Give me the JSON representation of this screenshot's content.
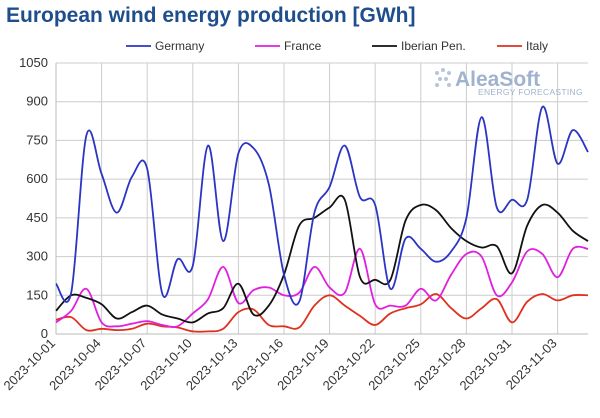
{
  "chart_data": {
    "type": "line",
    "title": "European wind energy production [GWh]",
    "xlabel": "",
    "ylabel": "",
    "ylim": [
      0,
      1050
    ],
    "yticks": [
      0,
      150,
      300,
      450,
      600,
      750,
      900,
      1050
    ],
    "grid": true,
    "legend_position": "top",
    "x": [
      "2023-10-01",
      "2023-10-02",
      "2023-10-03",
      "2023-10-04",
      "2023-10-05",
      "2023-10-06",
      "2023-10-07",
      "2023-10-08",
      "2023-10-09",
      "2023-10-10",
      "2023-10-11",
      "2023-10-12",
      "2023-10-13",
      "2023-10-14",
      "2023-10-15",
      "2023-10-16",
      "2023-10-17",
      "2023-10-18",
      "2023-10-19",
      "2023-10-20",
      "2023-10-21",
      "2023-10-22",
      "2023-10-23",
      "2023-10-24",
      "2023-10-25",
      "2023-10-26",
      "2023-10-27",
      "2023-10-28",
      "2023-10-29",
      "2023-10-30",
      "2023-10-31",
      "2023-11-01",
      "2023-11-02",
      "2023-11-03",
      "2023-11-04",
      "2023-11-05"
    ],
    "xtick_labels": [
      "2023-10-01",
      "2023-10-04",
      "2023-10-07",
      "2023-10-10",
      "2023-10-13",
      "2023-10-16",
      "2023-10-19",
      "2023-10-22",
      "2023-10-25",
      "2023-10-28",
      "2023-10-31",
      "2023-11-03"
    ],
    "series": [
      {
        "name": "Germany",
        "color": "#2b35c4",
        "values": [
          195,
          160,
          770,
          620,
          470,
          610,
          640,
          155,
          290,
          265,
          730,
          360,
          700,
          720,
          580,
          230,
          125,
          470,
          570,
          730,
          530,
          500,
          175,
          370,
          330,
          280,
          320,
          450,
          840,
          490,
          520,
          520,
          880,
          660,
          790,
          705
        ]
      },
      {
        "name": "France",
        "color": "#e020e0",
        "values": [
          45,
          90,
          175,
          45,
          30,
          40,
          50,
          35,
          30,
          80,
          135,
          260,
          120,
          170,
          180,
          150,
          160,
          260,
          180,
          160,
          330,
          115,
          110,
          110,
          175,
          130,
          230,
          310,
          300,
          150,
          200,
          320,
          310,
          220,
          330,
          330
        ]
      },
      {
        "name": "Iberian Pen.",
        "color": "#111111",
        "values": [
          90,
          150,
          140,
          115,
          60,
          85,
          110,
          75,
          60,
          45,
          80,
          100,
          195,
          75,
          110,
          230,
          420,
          450,
          490,
          520,
          220,
          210,
          210,
          440,
          500,
          480,
          410,
          360,
          335,
          340,
          235,
          420,
          500,
          470,
          400,
          360
        ]
      },
      {
        "name": "Italy",
        "color": "#e03020",
        "values": [
          55,
          65,
          15,
          20,
          15,
          20,
          40,
          30,
          25,
          10,
          10,
          20,
          85,
          95,
          35,
          30,
          25,
          110,
          150,
          110,
          70,
          35,
          80,
          100,
          115,
          155,
          100,
          60,
          100,
          135,
          45,
          125,
          155,
          130,
          150,
          150
        ]
      }
    ]
  },
  "logo": {
    "name": "AleaSoft",
    "tagline": "ENERGY FORECASTING"
  }
}
